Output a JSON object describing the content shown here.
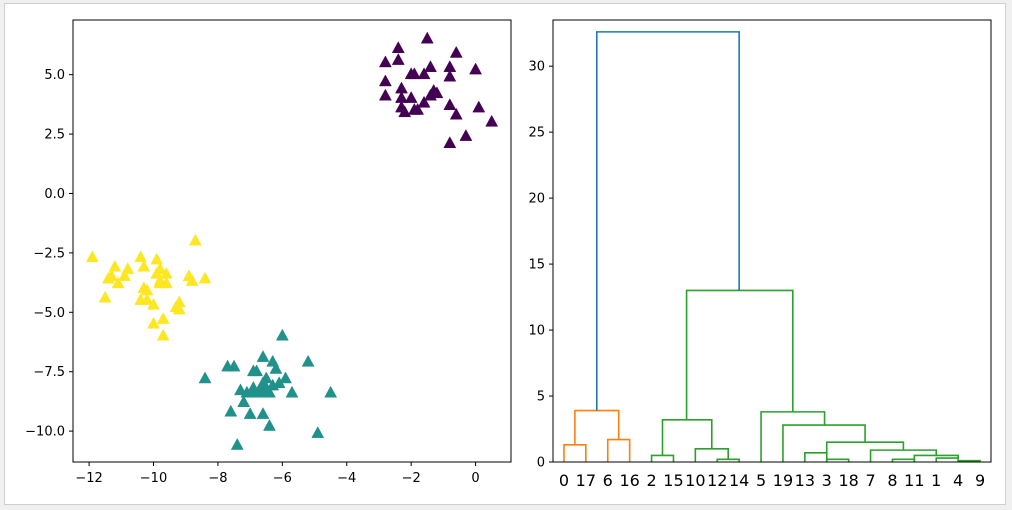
{
  "chart_data": [
    {
      "type": "scatter",
      "marker": "triangle",
      "title": "",
      "xlabel": "",
      "ylabel": "",
      "xlim": [
        -12.5,
        1.1
      ],
      "ylim": [
        -11.3,
        7.3
      ],
      "xticks": [
        -12,
        -10,
        -8,
        -6,
        -4,
        -2,
        0
      ],
      "xtick_labels": [
        "−12",
        "−10",
        "−8",
        "−6",
        "−4",
        "−2",
        "0"
      ],
      "yticks": [
        -10,
        -7.5,
        -5,
        -2.5,
        0,
        2.5,
        5
      ],
      "ytick_labels": [
        "−10.0",
        "−7.5",
        "−5.0",
        "−2.5",
        "0.0",
        "2.5",
        "5.0"
      ],
      "series": [
        {
          "color": "#440154",
          "points": [
            [
              -2.4,
              6.1
            ],
            [
              -1.5,
              6.5
            ],
            [
              -0.6,
              5.9
            ],
            [
              -2.8,
              5.5
            ],
            [
              -2.4,
              5.6
            ],
            [
              -1.4,
              5.3
            ],
            [
              -0.8,
              5.3
            ],
            [
              0.0,
              5.2
            ],
            [
              -1.9,
              5.0
            ],
            [
              -2.0,
              5.0
            ],
            [
              -1.6,
              5.0
            ],
            [
              -0.8,
              4.9
            ],
            [
              -2.8,
              4.7
            ],
            [
              -2.3,
              4.4
            ],
            [
              -1.3,
              4.3
            ],
            [
              -1.2,
              4.2
            ],
            [
              -2.8,
              4.1
            ],
            [
              -2.3,
              4.0
            ],
            [
              -2.0,
              4.0
            ],
            [
              -1.4,
              4.1
            ],
            [
              -1.6,
              3.8
            ],
            [
              -0.8,
              3.7
            ],
            [
              -2.3,
              3.6
            ],
            [
              -1.9,
              3.5
            ],
            [
              -2.2,
              3.4
            ],
            [
              -1.8,
              3.5
            ],
            [
              -0.6,
              3.3
            ],
            [
              0.1,
              3.6
            ],
            [
              0.5,
              3.0
            ],
            [
              -0.3,
              2.4
            ],
            [
              -0.8,
              2.1
            ]
          ]
        },
        {
          "color": "#21918c",
          "points": [
            [
              -6.0,
              -6.0
            ],
            [
              -6.6,
              -6.9
            ],
            [
              -5.2,
              -7.1
            ],
            [
              -6.3,
              -7.1
            ],
            [
              -7.7,
              -7.3
            ],
            [
              -7.5,
              -7.3
            ],
            [
              -6.2,
              -7.4
            ],
            [
              -6.9,
              -7.5
            ],
            [
              -6.8,
              -7.5
            ],
            [
              -8.4,
              -7.8
            ],
            [
              -6.5,
              -7.8
            ],
            [
              -5.9,
              -7.8
            ],
            [
              -6.1,
              -8.0
            ],
            [
              -6.6,
              -8.0
            ],
            [
              -6.3,
              -8.1
            ],
            [
              -6.9,
              -8.2
            ],
            [
              -6.5,
              -8.2
            ],
            [
              -7.3,
              -8.3
            ],
            [
              -6.7,
              -8.3
            ],
            [
              -6.6,
              -8.4
            ],
            [
              -6.4,
              -8.4
            ],
            [
              -7.1,
              -8.4
            ],
            [
              -6.9,
              -8.4
            ],
            [
              -5.7,
              -8.4
            ],
            [
              -4.5,
              -8.4
            ],
            [
              -7.2,
              -8.8
            ],
            [
              -7.6,
              -9.2
            ],
            [
              -7.0,
              -9.3
            ],
            [
              -6.6,
              -9.3
            ],
            [
              -6.4,
              -9.8
            ],
            [
              -4.9,
              -10.1
            ],
            [
              -7.4,
              -10.6
            ]
          ]
        },
        {
          "color": "#fde725",
          "points": [
            [
              -8.7,
              -2.0
            ],
            [
              -11.9,
              -2.7
            ],
            [
              -10.4,
              -2.7
            ],
            [
              -9.9,
              -2.8
            ],
            [
              -10.3,
              -3.1
            ],
            [
              -11.2,
              -3.1
            ],
            [
              -9.8,
              -3.2
            ],
            [
              -10.8,
              -3.2
            ],
            [
              -9.6,
              -3.4
            ],
            [
              -11.3,
              -3.5
            ],
            [
              -9.9,
              -3.4
            ],
            [
              -10.9,
              -3.5
            ],
            [
              -8.9,
              -3.5
            ],
            [
              -8.4,
              -3.6
            ],
            [
              -11.4,
              -3.6
            ],
            [
              -9.8,
              -3.7
            ],
            [
              -11.1,
              -3.8
            ],
            [
              -9.6,
              -3.8
            ],
            [
              -8.8,
              -3.7
            ],
            [
              -10.3,
              -4.0
            ],
            [
              -9.8,
              -3.8
            ],
            [
              -10.2,
              -4.1
            ],
            [
              -11.5,
              -4.4
            ],
            [
              -10.4,
              -4.5
            ],
            [
              -10.2,
              -4.5
            ],
            [
              -9.2,
              -4.6
            ],
            [
              -10.0,
              -4.7
            ],
            [
              -9.3,
              -4.8
            ],
            [
              -9.2,
              -4.9
            ],
            [
              -9.7,
              -5.3
            ],
            [
              -10.0,
              -5.5
            ],
            [
              -9.7,
              -6.0
            ]
          ]
        }
      ]
    },
    {
      "type": "dendrogram",
      "title": "",
      "xlabel": "",
      "ylabel": "",
      "ylim": [
        0,
        33.5
      ],
      "yticks": [
        0,
        5,
        10,
        15,
        20,
        25,
        30
      ],
      "ytick_labels": [
        "0",
        "5",
        "10",
        "15",
        "20",
        "25",
        "30"
      ],
      "leaves": [
        "0",
        "17",
        "6",
        "16",
        "2",
        "15",
        "10",
        "12",
        "14",
        "5",
        "19",
        "13",
        "3",
        "18",
        "7",
        "8",
        "11",
        "1",
        "4",
        "9"
      ],
      "links": [
        {
          "left": [
            0,
            1
          ],
          "right": [
            1,
            1
          ],
          "height": 1.3,
          "color": "#ff7f0e",
          "left_base": 0,
          "right_base": 0
        },
        {
          "left": [
            2,
            3
          ],
          "right": [
            3,
            3
          ],
          "height": 1.7,
          "color": "#ff7f0e",
          "left_base": 0,
          "right_base": 0
        },
        {
          "left": [
            0.5,
            0.5
          ],
          "right": [
            2.5,
            2.5
          ],
          "height": 3.9,
          "color": "#ff7f0e",
          "left_base": 1.3,
          "right_base": 1.7
        },
        {
          "left": [
            4,
            4
          ],
          "right": [
            5,
            5
          ],
          "height": 0.5,
          "color": "#2ca02c",
          "left_base": 0,
          "right_base": 0
        },
        {
          "left": [
            7,
            7
          ],
          "right": [
            8,
            8
          ],
          "height": 0.2,
          "color": "#2ca02c",
          "left_base": 0,
          "right_base": 0
        },
        {
          "left": [
            6,
            6
          ],
          "right": [
            7.5,
            7.5
          ],
          "height": 1.0,
          "color": "#2ca02c",
          "left_base": 0,
          "right_base": 0.2
        },
        {
          "left": [
            4.5,
            4.5
          ],
          "right": [
            6.75,
            6.75
          ],
          "height": 3.2,
          "color": "#2ca02c",
          "left_base": 0.5,
          "right_base": 1.0
        },
        {
          "left": [
            11,
            11
          ],
          "right": [
            12,
            12
          ],
          "height": 0.7,
          "color": "#2ca02c",
          "left_base": 0,
          "right_base": 0
        },
        {
          "left": [
            12,
            12
          ],
          "right": [
            13,
            13
          ],
          "height": 0.2,
          "color": "#2ca02c",
          "left_base": 0,
          "right_base": 0
        },
        {
          "left": [
            15,
            15
          ],
          "right": [
            16,
            16
          ],
          "height": 0.2,
          "color": "#2ca02c",
          "left_base": 0,
          "right_base": 0
        },
        {
          "left": [
            17,
            17
          ],
          "right": [
            18,
            18
          ],
          "height": 0.3,
          "color": "#2ca02c",
          "left_base": 0,
          "right_base": 0
        },
        {
          "left": [
            18,
            18
          ],
          "right": [
            19,
            19
          ],
          "height": 0.1,
          "color": "#2ca02c",
          "left_base": 0,
          "right_base": 0
        },
        {
          "left": [
            16,
            16
          ],
          "right": [
            18,
            18
          ],
          "height": 0.5,
          "color": "#2ca02c",
          "left_base": 0,
          "right_base": 0.3
        },
        {
          "left": [
            14,
            14
          ],
          "right": [
            17,
            17
          ],
          "height": 0.9,
          "color": "#2ca02c",
          "left_base": 0,
          "right_base": 0.5
        },
        {
          "left": [
            12,
            12
          ],
          "right": [
            15.5,
            15.5
          ],
          "height": 1.5,
          "color": "#2ca02c",
          "left_base": 0.7,
          "right_base": 0.9
        },
        {
          "left": [
            10,
            10
          ],
          "right": [
            13.75,
            13.75
          ],
          "height": 2.8,
          "color": "#2ca02c",
          "left_base": 0,
          "right_base": 1.5
        },
        {
          "left": [
            9,
            9
          ],
          "right": [
            11.9,
            11.9
          ],
          "height": 3.8,
          "color": "#2ca02c",
          "left_base": 0,
          "right_base": 2.8
        },
        {
          "left": [
            5.6,
            5.6
          ],
          "right": [
            10.45,
            10.45
          ],
          "height": 13.0,
          "color": "#2ca02c",
          "left_base": 3.2,
          "right_base": 3.8
        },
        {
          "left": [
            1.5,
            1.5
          ],
          "right": [
            8.0,
            8.0
          ],
          "height": 32.6,
          "color": "#1f77b4",
          "left_base": 3.9,
          "right_base": 13.0
        }
      ]
    }
  ]
}
